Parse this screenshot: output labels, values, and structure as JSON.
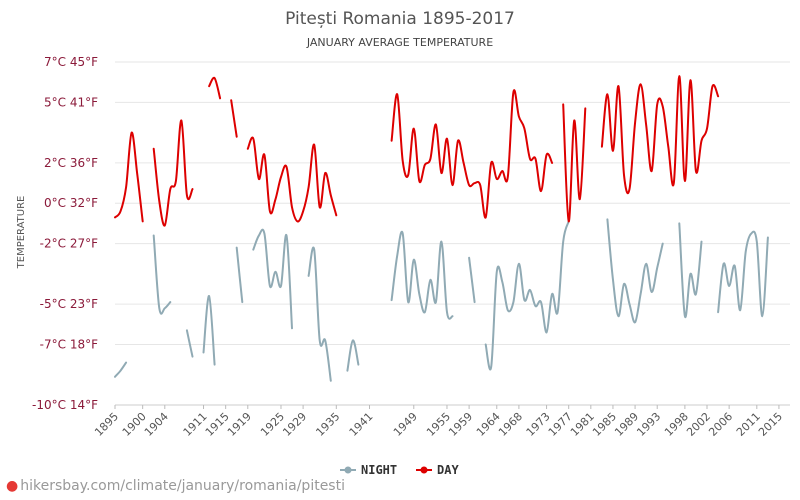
{
  "chart_data": {
    "type": "line",
    "title": "Pitești Romania 1895-2017",
    "subtitle": "JANUARY AVERAGE TEMPERATURE",
    "ylabel": "TEMPERATURE",
    "xlim": [
      1895,
      2017
    ],
    "ylim": [
      -10,
      7
    ],
    "grid": true,
    "legend_position": "bottom",
    "y_ticks": [
      {
        "value": 7,
        "label": "7°C 45°F"
      },
      {
        "value": 5,
        "label": "5°C 41°F"
      },
      {
        "value": 2,
        "label": "2°C 36°F"
      },
      {
        "value": 0,
        "label": "0°C 32°F"
      },
      {
        "value": -2,
        "label": "-2°C 27°F"
      },
      {
        "value": -5,
        "label": "-5°C 23°F"
      },
      {
        "value": -7,
        "label": "-7°C 18°F"
      },
      {
        "value": -10,
        "label": "-10°C 14°F"
      }
    ],
    "x_ticks": [
      "1895",
      "1900",
      "1904",
      "1911",
      "1915",
      "1919",
      "1925",
      "1929",
      "1935",
      "1941",
      "1949",
      "1955",
      "1959",
      "1964",
      "1968",
      "1973",
      "1977",
      "1981",
      "1985",
      "1989",
      "1993",
      "1998",
      "2002",
      "2006",
      "2011",
      "2015"
    ],
    "series": [
      {
        "name": "NIGHT",
        "color": "#90aab4",
        "segments": [
          [
            [
              1895,
              -8.6
            ],
            [
              1896,
              -8.3
            ],
            [
              1897,
              -7.9
            ]
          ],
          [
            [
              1902,
              -1.6
            ],
            [
              1903,
              -5.2
            ],
            [
              1904,
              -5.2
            ],
            [
              1905,
              -4.9
            ]
          ],
          [
            [
              1908,
              -6.3
            ],
            [
              1909,
              -7.6
            ]
          ],
          [
            [
              1911,
              -7.4
            ],
            [
              1912,
              -4.6
            ],
            [
              1913,
              -8.0
            ]
          ],
          [
            [
              1917,
              -2.2
            ],
            [
              1918,
              -4.9
            ]
          ],
          [
            [
              1920,
              -2.3
            ],
            [
              1921,
              -1.6
            ],
            [
              1922,
              -1.5
            ],
            [
              1923,
              -4.1
            ],
            [
              1924,
              -3.4
            ],
            [
              1925,
              -4.1
            ],
            [
              1926,
              -1.6
            ],
            [
              1927,
              -6.2
            ]
          ],
          [
            [
              1930,
              -3.6
            ],
            [
              1931,
              -2.3
            ],
            [
              1932,
              -6.8
            ],
            [
              1933,
              -6.8
            ],
            [
              1934,
              -8.8
            ]
          ],
          [
            [
              1937,
              -8.3
            ],
            [
              1938,
              -6.8
            ],
            [
              1939,
              -8.0
            ]
          ],
          [
            [
              1945,
              -4.8
            ],
            [
              1946,
              -2.6
            ],
            [
              1947,
              -1.5
            ],
            [
              1948,
              -4.9
            ],
            [
              1949,
              -2.8
            ],
            [
              1950,
              -4.5
            ],
            [
              1951,
              -5.4
            ],
            [
              1952,
              -3.8
            ],
            [
              1953,
              -4.9
            ],
            [
              1954,
              -1.9
            ],
            [
              1955,
              -5.4
            ],
            [
              1956,
              -5.6
            ]
          ],
          [
            [
              1959,
              -2.7
            ],
            [
              1960,
              -4.9
            ]
          ],
          [
            [
              1962,
              -7.0
            ],
            [
              1963,
              -8.1
            ],
            [
              1964,
              -3.4
            ],
            [
              1965,
              -3.9
            ],
            [
              1966,
              -5.3
            ],
            [
              1967,
              -4.9
            ],
            [
              1968,
              -3.0
            ],
            [
              1969,
              -4.8
            ],
            [
              1970,
              -4.3
            ],
            [
              1971,
              -5.1
            ],
            [
              1972,
              -4.9
            ],
            [
              1973,
              -6.4
            ],
            [
              1974,
              -4.5
            ],
            [
              1975,
              -5.4
            ],
            [
              1976,
              -1.9
            ],
            [
              1977,
              -0.9
            ]
          ],
          [
            [
              1984,
              -0.8
            ],
            [
              1985,
              -3.8
            ],
            [
              1986,
              -5.6
            ],
            [
              1987,
              -4.0
            ],
            [
              1988,
              -5.0
            ],
            [
              1989,
              -5.9
            ],
            [
              1990,
              -4.5
            ],
            [
              1991,
              -3.0
            ],
            [
              1992,
              -4.4
            ],
            [
              1993,
              -3.2
            ],
            [
              1994,
              -2.0
            ]
          ],
          [
            [
              1997,
              -1.0
            ],
            [
              1998,
              -5.6
            ],
            [
              1999,
              -3.5
            ],
            [
              2000,
              -4.5
            ],
            [
              2001,
              -1.9
            ]
          ],
          [
            [
              2004,
              -5.4
            ],
            [
              2005,
              -3.0
            ],
            [
              2006,
              -4.1
            ],
            [
              2007,
              -3.1
            ],
            [
              2008,
              -5.3
            ],
            [
              2009,
              -2.4
            ],
            [
              2010,
              -1.5
            ],
            [
              2011,
              -1.9
            ],
            [
              2012,
              -5.6
            ],
            [
              2013,
              -1.7
            ]
          ]
        ]
      },
      {
        "name": "DAY",
        "color": "#dd0000",
        "segments": [
          [
            [
              1895,
              -0.7
            ],
            [
              1896,
              -0.4
            ],
            [
              1897,
              0.8
            ],
            [
              1898,
              3.5
            ],
            [
              1899,
              1.5
            ],
            [
              1900,
              -0.9
            ]
          ],
          [
            [
              1902,
              2.7
            ],
            [
              1903,
              0.1
            ],
            [
              1904,
              -1.1
            ],
            [
              1905,
              0.7
            ],
            [
              1906,
              1.1
            ],
            [
              1907,
              4.1
            ],
            [
              1908,
              0.4
            ],
            [
              1909,
              0.7
            ]
          ],
          [
            [
              1912,
              5.8
            ],
            [
              1913,
              6.2
            ],
            [
              1914,
              5.2
            ]
          ],
          [
            [
              1916,
              5.1
            ],
            [
              1917,
              3.3
            ]
          ],
          [
            [
              1919,
              2.7
            ],
            [
              1920,
              3.2
            ],
            [
              1921,
              1.2
            ],
            [
              1922,
              2.4
            ],
            [
              1923,
              -0.4
            ],
            [
              1924,
              0.2
            ],
            [
              1925,
              1.3
            ],
            [
              1926,
              1.8
            ],
            [
              1927,
              -0.2
            ],
            [
              1928,
              -0.9
            ],
            [
              1929,
              -0.4
            ],
            [
              1930,
              0.8
            ],
            [
              1931,
              2.9
            ],
            [
              1932,
              -0.2
            ],
            [
              1933,
              1.5
            ],
            [
              1934,
              0.4
            ],
            [
              1935,
              -0.6
            ]
          ],
          [
            [
              1945,
              3.1
            ],
            [
              1946,
              5.4
            ],
            [
              1947,
              2.1
            ],
            [
              1948,
              1.4
            ],
            [
              1949,
              3.7
            ],
            [
              1950,
              1.1
            ],
            [
              1951,
              1.9
            ],
            [
              1952,
              2.2
            ],
            [
              1953,
              3.9
            ],
            [
              1954,
              1.5
            ],
            [
              1955,
              3.2
            ],
            [
              1956,
              0.9
            ],
            [
              1957,
              3.1
            ],
            [
              1958,
              2.0
            ],
            [
              1959,
              0.9
            ],
            [
              1960,
              1.0
            ],
            [
              1961,
              0.9
            ],
            [
              1962,
              -0.7
            ],
            [
              1963,
              2.0
            ],
            [
              1964,
              1.2
            ],
            [
              1965,
              1.6
            ],
            [
              1966,
              1.3
            ],
            [
              1967,
              5.5
            ],
            [
              1968,
              4.3
            ],
            [
              1969,
              3.7
            ],
            [
              1970,
              2.2
            ],
            [
              1971,
              2.2
            ],
            [
              1972,
              0.6
            ],
            [
              1973,
              2.4
            ],
            [
              1974,
              2.0
            ]
          ],
          [
            [
              1976,
              4.9
            ],
            [
              1977,
              -0.9
            ],
            [
              1978,
              4.1
            ],
            [
              1979,
              0.2
            ],
            [
              1980,
              4.7
            ]
          ],
          [
            [
              1983,
              2.8
            ],
            [
              1984,
              5.4
            ],
            [
              1985,
              2.6
            ],
            [
              1986,
              5.8
            ],
            [
              1987,
              1.4
            ],
            [
              1988,
              0.7
            ],
            [
              1989,
              4.0
            ],
            [
              1990,
              5.9
            ],
            [
              1991,
              3.9
            ],
            [
              1992,
              1.6
            ],
            [
              1993,
              4.9
            ],
            [
              1994,
              4.8
            ],
            [
              1995,
              2.8
            ],
            [
              1996,
              1.0
            ],
            [
              1997,
              6.3
            ],
            [
              1998,
              1.1
            ],
            [
              1999,
              6.1
            ],
            [
              2000,
              1.6
            ],
            [
              2001,
              3.1
            ],
            [
              2002,
              3.7
            ],
            [
              2003,
              5.8
            ],
            [
              2004,
              5.3
            ]
          ]
        ]
      }
    ]
  },
  "credit": {
    "text": "hikersbay.com/climate/january/romania/pitesti"
  }
}
